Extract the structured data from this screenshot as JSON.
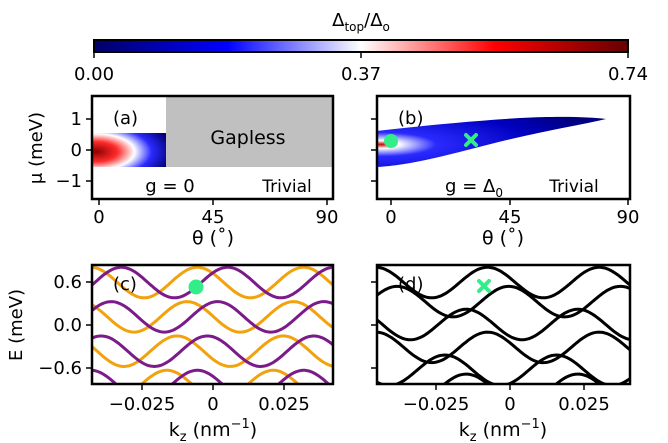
{
  "colorbar": {
    "label_main": "Δ",
    "label_sub": "top",
    "label_tail": "/Δ",
    "label_tail_sub": "o",
    "ticks": [
      "0.00",
      "0.37",
      "0.74"
    ],
    "colormap": [
      "#000066",
      "#0000ff",
      "#ffffff",
      "#ff0000",
      "#660000"
    ]
  },
  "chart_data": [
    {
      "panel": "(a)",
      "type": "heatmap",
      "xlabel": "θ (˚)",
      "ylabel": "μ (meV)",
      "xticks": [
        "0",
        "45",
        "90"
      ],
      "yticks": [
        "1",
        "0",
        "−1"
      ],
      "xlim": [
        -3,
        90
      ],
      "ylim": [
        -1.7,
        1.7
      ],
      "annotations": {
        "gapless": "Gapless",
        "trivial": "Trivial",
        "g_label": "g = 0"
      },
      "gapless_region": {
        "theta": [
          25,
          90
        ],
        "mu": [
          -0.55,
          1.7
        ],
        "color": "#c0c0c0"
      },
      "topological_region": {
        "theta": [
          -3,
          25
        ],
        "mu": [
          -0.55,
          0.5
        ],
        "max_value": 0.74
      }
    },
    {
      "panel": "(b)",
      "type": "heatmap",
      "xlabel": "θ (˚)",
      "xticks": [
        "0",
        "45",
        "90"
      ],
      "xlim": [
        -3,
        90
      ],
      "ylim": [
        -1.7,
        1.7
      ],
      "annotations": {
        "trivial": "Trivial",
        "g_label": "g = Δ",
        "g_label_sub": "0"
      },
      "topological_region": {
        "theta": [
          -3,
          80
        ],
        "mu_max_at_0": 0.55,
        "mu_min_at_0": -0.5,
        "max_value": 0.74
      },
      "markers": [
        {
          "shape": "circle",
          "theta": 0,
          "mu": 0.3,
          "color": "#33ee88"
        },
        {
          "shape": "x",
          "theta": 28,
          "mu": 0.3,
          "color": "#33ee88"
        }
      ]
    },
    {
      "panel": "(c)",
      "type": "line",
      "xlabel": "k",
      "xlabel_sub": "z",
      "xlabel_tail": " (nm",
      "xlabel_sup": "−1",
      "xlabel_close": ")",
      "ylabel": "E (meV)",
      "xticks": [
        "−0.025",
        "0",
        "0.025"
      ],
      "yticks": [
        "0.6",
        "0.0",
        "−0.6"
      ],
      "xlim": [
        -0.034,
        0.034
      ],
      "ylim": [
        -0.78,
        0.78
      ],
      "marker": {
        "shape": "circle",
        "kz": -0.0075,
        "E": 0.55,
        "color": "#33ee88"
      },
      "series": [
        {
          "color": "#f2a20c",
          "kind": "bands",
          "phase_sign": 1
        },
        {
          "color": "#7b1b8a",
          "kind": "bands",
          "phase_sign": -1
        }
      ]
    },
    {
      "panel": "(d)",
      "type": "line",
      "xlabel": "k",
      "xlabel_sub": "z",
      "xlabel_tail": " (nm",
      "xlabel_sup": "−1",
      "xlabel_close": ")",
      "xticks": [
        "−0.025",
        "0",
        "0.025"
      ],
      "xlim": [
        -0.034,
        0.034
      ],
      "ylim": [
        -0.78,
        0.78
      ],
      "marker": {
        "shape": "x",
        "kz": -0.0075,
        "E": 0.55,
        "color": "#33ee88"
      },
      "series": [
        {
          "color": "#000000",
          "kind": "bands"
        }
      ]
    }
  ]
}
